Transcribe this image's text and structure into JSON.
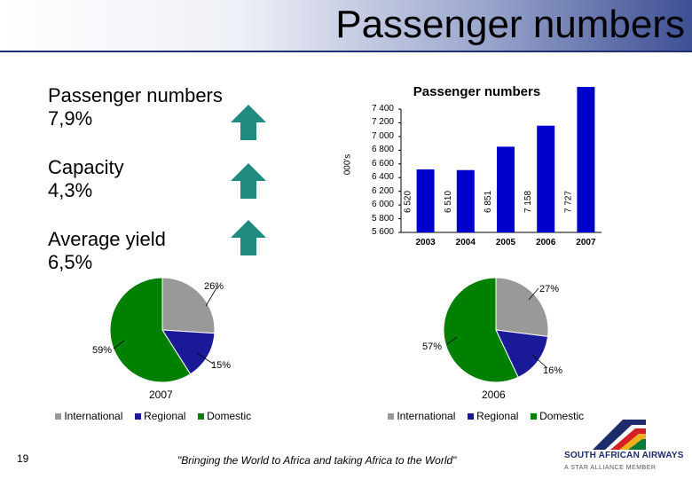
{
  "header": {
    "title": "Passenger numbers"
  },
  "kpis": [
    {
      "label": "Passenger numbers",
      "value": "7,9%",
      "trend": "up-arrow-icon"
    },
    {
      "label": "Capacity",
      "value": "4,3%",
      "trend": "up-arrow-icon"
    },
    {
      "label": "Average yield",
      "value": "6,5%",
      "trend": "up-arrow-icon"
    }
  ],
  "colors": {
    "bar": "#0000cc",
    "international": "#999999",
    "regional": "#1a1a99",
    "domestic": "#008000",
    "arrow": "#1f8a80"
  },
  "chart_data": [
    {
      "type": "bar",
      "title": "Passenger numbers",
      "ylabel": "000's",
      "categories": [
        "2003",
        "2004",
        "2005",
        "2006",
        "2007"
      ],
      "values": [
        6520,
        6510,
        6851,
        7158,
        7727
      ],
      "value_labels": [
        "6 520",
        "6 510",
        "6 851",
        "7 158",
        "7 727"
      ],
      "ylim": [
        5600,
        7400
      ],
      "yticks": [
        "5 600",
        "5 800",
        "6 000",
        "6 200",
        "6 400",
        "6 600",
        "6 800",
        "7 000",
        "7 200",
        "7 400"
      ]
    },
    {
      "type": "pie",
      "title": "2007",
      "labels": [
        "International",
        "Regional",
        "Domestic"
      ],
      "values": [
        26,
        15,
        59
      ],
      "value_labels": [
        "26%",
        "15%",
        "59%"
      ]
    },
    {
      "type": "pie",
      "title": "2006",
      "labels": [
        "International",
        "Regional",
        "Domestic"
      ],
      "values": [
        27,
        16,
        57
      ],
      "value_labels": [
        "27%",
        "16%",
        "57%"
      ]
    }
  ],
  "footer": {
    "page_number": "19",
    "quote": "\"Bringing the World to Africa and taking Africa to the World\"",
    "brand_name": "SOUTH AFRICAN AIRWAYS",
    "brand_tag": "A STAR ALLIANCE MEMBER"
  }
}
